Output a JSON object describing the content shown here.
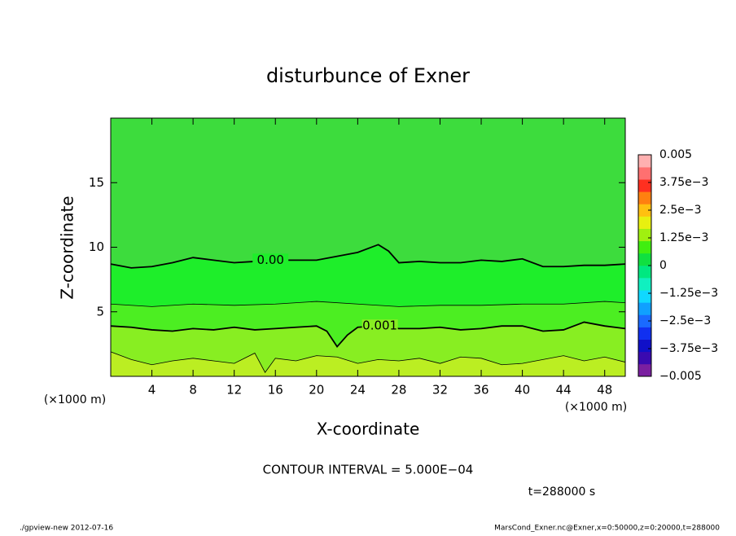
{
  "chart_data": {
    "type": "contour",
    "title": "disturbunce of Exner",
    "xlabel": "X-coordinate",
    "ylabel": "Z-coordinate",
    "x_unit": "(×1000 m)",
    "y_unit": "(×1000 m)",
    "xlim": [
      0,
      50
    ],
    "ylim": [
      0,
      20
    ],
    "xticks": [
      4,
      8,
      12,
      16,
      20,
      24,
      28,
      32,
      36,
      40,
      44,
      48
    ],
    "yticks": [
      5,
      10,
      15
    ],
    "background_color": "#3ddc3d",
    "contours": [
      {
        "level": 0,
        "label": "0.00",
        "color": "#1eee2a",
        "width": 1.8,
        "x": [
          0,
          2,
          4,
          6,
          8,
          10,
          12,
          14,
          16,
          18,
          20,
          22,
          24,
          26,
          27,
          28,
          30,
          32,
          34,
          36,
          38,
          40,
          42,
          44,
          46,
          48,
          50
        ],
        "z": [
          8.7,
          8.4,
          8.5,
          8.8,
          9.2,
          9.0,
          8.8,
          8.9,
          9.0,
          9.0,
          9.0,
          9.3,
          9.6,
          10.2,
          9.7,
          8.8,
          8.9,
          8.8,
          8.8,
          9.0,
          8.9,
          9.1,
          8.5,
          8.5,
          8.6,
          8.6,
          8.7
        ]
      },
      {
        "level": 0.0005,
        "color": "#4cee22",
        "width": 0.8,
        "x": [
          0,
          4,
          8,
          12,
          16,
          20,
          24,
          28,
          32,
          36,
          40,
          44,
          48,
          50
        ],
        "z": [
          5.6,
          5.4,
          5.6,
          5.5,
          5.6,
          5.8,
          5.6,
          5.4,
          5.5,
          5.5,
          5.6,
          5.6,
          5.8,
          5.7
        ]
      },
      {
        "level": 0.001,
        "label": "0.001",
        "color": "#88ee22",
        "width": 1.8,
        "x": [
          0,
          2,
          4,
          6,
          8,
          10,
          12,
          14,
          16,
          18,
          20,
          21,
          22,
          23,
          24,
          26,
          28,
          30,
          32,
          34,
          36,
          38,
          40,
          42,
          44,
          46,
          48,
          50
        ],
        "z": [
          3.9,
          3.8,
          3.6,
          3.5,
          3.7,
          3.6,
          3.8,
          3.6,
          3.7,
          3.8,
          3.9,
          3.5,
          2.3,
          3.2,
          3.8,
          3.9,
          3.7,
          3.7,
          3.8,
          3.6,
          3.7,
          3.9,
          3.9,
          3.5,
          3.6,
          4.2,
          3.9,
          3.7
        ]
      },
      {
        "level": 0.0015,
        "color": "#bbee22",
        "width": 0.8,
        "x": [
          0,
          2,
          4,
          6,
          8,
          10,
          12,
          14,
          15,
          16,
          18,
          20,
          22,
          24,
          26,
          28,
          30,
          32,
          34,
          36,
          38,
          40,
          42,
          44,
          46,
          48,
          50
        ],
        "z": [
          1.9,
          1.3,
          0.9,
          1.2,
          1.4,
          1.2,
          1.0,
          1.8,
          0.3,
          1.4,
          1.2,
          1.6,
          1.5,
          1.0,
          1.3,
          1.2,
          1.4,
          1.0,
          1.5,
          1.4,
          0.9,
          1.0,
          1.3,
          1.6,
          1.2,
          1.5,
          1.1
        ]
      }
    ],
    "colorbar": {
      "lim": [
        -0.005,
        0.005
      ],
      "colors": [
        "#7a1fa0",
        "#3a0ab0",
        "#1010c8",
        "#1030f0",
        "#1a6aff",
        "#10a0ff",
        "#10d8ff",
        "#10f0c0",
        "#00e880",
        "#10e040",
        "#40ee10",
        "#a0f010",
        "#e8f010",
        "#ffc010",
        "#ff8010",
        "#ff3020",
        "#ff7070",
        "#ffb0b0"
      ],
      "ticks": [
        {
          "value": -0.005,
          "label": "−0.005"
        },
        {
          "value": -0.00375,
          "label": "−3.75e−3"
        },
        {
          "value": -0.0025,
          "label": "−2.5e−3"
        },
        {
          "value": -0.00125,
          "label": "−1.25e−3"
        },
        0,
        {
          "value": 0.00125,
          "label": "1.25e−3"
        },
        {
          "value": 0.0025,
          "label": "2.5e−3"
        },
        {
          "value": 0.00375,
          "label": "3.75e−3"
        },
        0.005
      ]
    },
    "contour_interval": "CONTOUR INTERVAL = 5.000E−04",
    "time": "t=288000 s",
    "footer_left": "./gpview-new   2012-07-16",
    "footer_right": "MarsCond_Exner.nc@Exner,x=0:50000,z=0:20000,t=288000"
  }
}
